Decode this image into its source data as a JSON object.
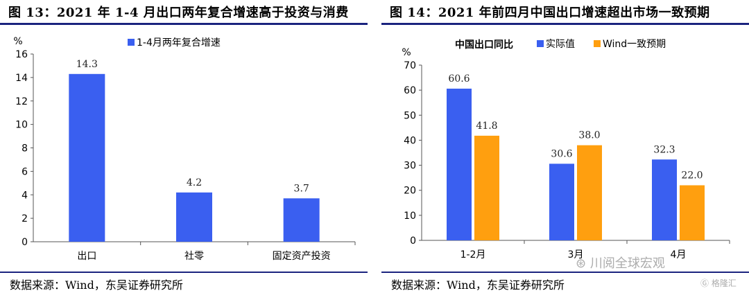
{
  "panel_left": {
    "title": "图 13：2021 年 1-4 月出口两年复合增速高于投资与消费",
    "source": "数据来源：Wind，东吴证券研究所",
    "unit": "%"
  },
  "panel_right": {
    "title": "图 14：2021 年前四月中国出口增速超出市场一致预期",
    "source": "数据来源：Wind，东吴证券研究所",
    "unit": "%"
  },
  "watermark": {
    "text1": "川阅全球宏观",
    "text2": "格隆汇"
  },
  "chart_data": [
    {
      "type": "bar",
      "categories": [
        "出口",
        "社零",
        "固定资产投资"
      ],
      "series": [
        {
          "name": "1-4月两年复合增速",
          "values": [
            14.3,
            4.2,
            3.7
          ],
          "color": "#3a5ff0"
        }
      ],
      "ylabel": "%",
      "ylim": [
        0,
        16
      ],
      "yticks": [
        0,
        2,
        4,
        6,
        8,
        10,
        12,
        14,
        16
      ],
      "legend": "top-center",
      "grid": false
    },
    {
      "type": "bar",
      "title": "中国出口同比",
      "categories": [
        "1-2月",
        "3月",
        "4月"
      ],
      "series": [
        {
          "name": "实际值",
          "values": [
            60.6,
            30.6,
            32.3
          ],
          "color": "#3a5ff0"
        },
        {
          "name": "Wind一致预期",
          "values": [
            41.8,
            38.0,
            22.0
          ],
          "color": "#ff9f0f"
        }
      ],
      "ylabel": "%",
      "ylim": [
        0,
        70
      ],
      "yticks": [
        0,
        10,
        20,
        30,
        40,
        50,
        60,
        70
      ],
      "legend": "top",
      "grid": false
    }
  ]
}
